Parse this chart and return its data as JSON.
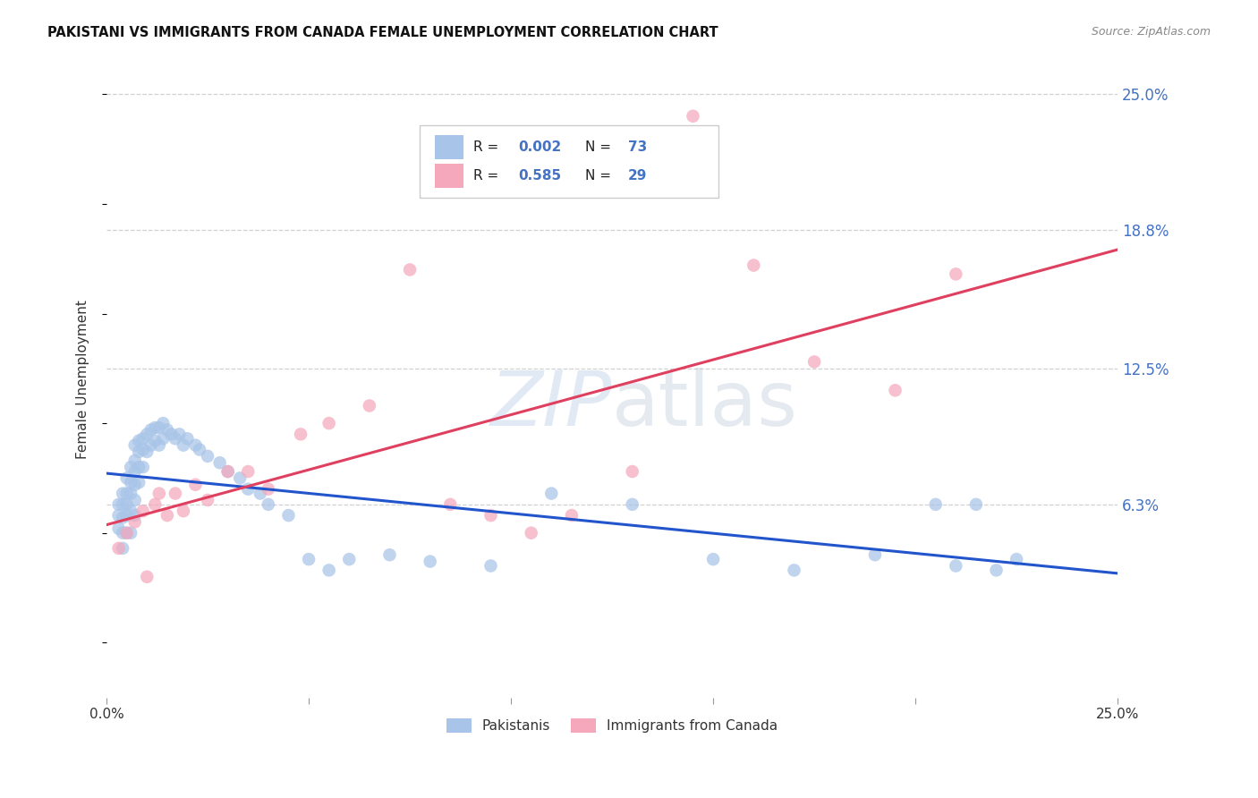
{
  "title": "PAKISTANI VS IMMIGRANTS FROM CANADA FEMALE UNEMPLOYMENT CORRELATION CHART",
  "source": "Source: ZipAtlas.com",
  "ylabel": "Female Unemployment",
  "xlim": [
    0.0,
    0.25
  ],
  "ylim": [
    -0.025,
    0.265
  ],
  "ytick_positions": [
    0.063,
    0.125,
    0.188,
    0.25
  ],
  "ytick_labels": [
    "6.3%",
    "12.5%",
    "18.8%",
    "25.0%"
  ],
  "xtick_positions": [
    0.0,
    0.05,
    0.1,
    0.15,
    0.2,
    0.25
  ],
  "xtick_labels": [
    "0.0%",
    "",
    "",
    "",
    "",
    "25.0%"
  ],
  "r_pak": "0.002",
  "n_pak": "73",
  "r_can": "0.585",
  "n_can": "29",
  "col_pak": "#a8c4e8",
  "col_can": "#f5a8bc",
  "col_pak_line": "#2255cc",
  "col_can_line": "#e04060",
  "col_grid": "#cccccc",
  "col_bg": "#ffffff",
  "col_ylab": "#4472c4",
  "watermark_color": "#c8d8ec",
  "pak_x": [
    0.003,
    0.003,
    0.003,
    0.004,
    0.004,
    0.004,
    0.004,
    0.004,
    0.005,
    0.005,
    0.005,
    0.005,
    0.005,
    0.006,
    0.006,
    0.006,
    0.006,
    0.006,
    0.007,
    0.007,
    0.007,
    0.007,
    0.007,
    0.007,
    0.008,
    0.008,
    0.008,
    0.008,
    0.009,
    0.009,
    0.009,
    0.01,
    0.01,
    0.011,
    0.011,
    0.012,
    0.012,
    0.013,
    0.013,
    0.014,
    0.014,
    0.015,
    0.016,
    0.017,
    0.018,
    0.019,
    0.02,
    0.022,
    0.023,
    0.025,
    0.028,
    0.03,
    0.033,
    0.035,
    0.038,
    0.04,
    0.045,
    0.05,
    0.055,
    0.06,
    0.07,
    0.08,
    0.095,
    0.11,
    0.13,
    0.15,
    0.17,
    0.19,
    0.205,
    0.21,
    0.215,
    0.22,
    0.225
  ],
  "pak_y": [
    0.063,
    0.058,
    0.052,
    0.068,
    0.063,
    0.057,
    0.05,
    0.043,
    0.075,
    0.068,
    0.063,
    0.058,
    0.05,
    0.08,
    0.073,
    0.068,
    0.06,
    0.05,
    0.09,
    0.083,
    0.078,
    0.072,
    0.065,
    0.058,
    0.092,
    0.087,
    0.08,
    0.073,
    0.093,
    0.088,
    0.08,
    0.095,
    0.087,
    0.097,
    0.09,
    0.098,
    0.092,
    0.098,
    0.09,
    0.1,
    0.093,
    0.097,
    0.095,
    0.093,
    0.095,
    0.09,
    0.093,
    0.09,
    0.088,
    0.085,
    0.082,
    0.078,
    0.075,
    0.07,
    0.068,
    0.063,
    0.058,
    0.038,
    0.033,
    0.038,
    0.04,
    0.037,
    0.035,
    0.068,
    0.063,
    0.038,
    0.033,
    0.04,
    0.063,
    0.035,
    0.063,
    0.033,
    0.038
  ],
  "can_x": [
    0.003,
    0.005,
    0.007,
    0.009,
    0.01,
    0.012,
    0.013,
    0.015,
    0.017,
    0.019,
    0.022,
    0.025,
    0.03,
    0.035,
    0.04,
    0.048,
    0.055,
    0.065,
    0.075,
    0.085,
    0.095,
    0.105,
    0.115,
    0.13,
    0.145,
    0.16,
    0.175,
    0.195,
    0.21
  ],
  "can_y": [
    0.043,
    0.05,
    0.055,
    0.06,
    0.03,
    0.063,
    0.068,
    0.058,
    0.068,
    0.06,
    0.072,
    0.065,
    0.078,
    0.078,
    0.07,
    0.095,
    0.1,
    0.108,
    0.17,
    0.063,
    0.058,
    0.05,
    0.058,
    0.078,
    0.24,
    0.172,
    0.128,
    0.115,
    0.168
  ]
}
